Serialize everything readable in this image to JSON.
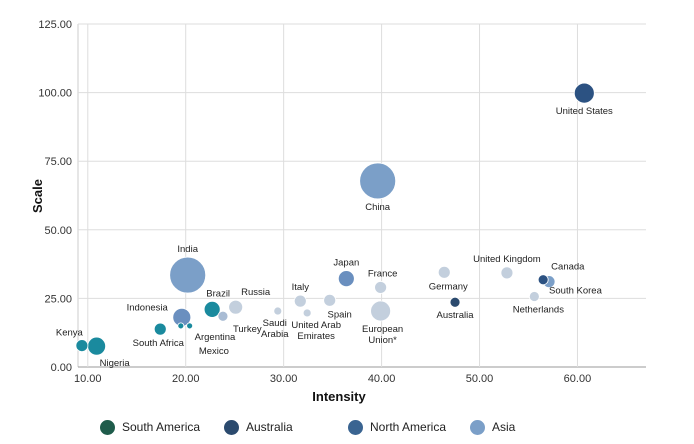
{
  "chart_data": {
    "type": "scatter",
    "xlabel": "Intensity",
    "ylabel": "Scale",
    "xlim": [
      9,
      67
    ],
    "ylim": [
      0,
      125
    ],
    "xticks": [
      "10.00",
      "20.00",
      "30.00",
      "40.00",
      "50.00",
      "60.00"
    ],
    "yticks": [
      "0.00",
      "25.00",
      "50.00",
      "75.00",
      "100.00",
      "125.00"
    ],
    "grid": true,
    "legend": [
      {
        "name": "South America",
        "color": "#1f5c4b"
      },
      {
        "name": "Australia",
        "color": "#2b4a6e"
      },
      {
        "name": "North America",
        "color": "#3a6491"
      },
      {
        "name": "Asia",
        "color": "#7b9fc8"
      }
    ],
    "points": [
      {
        "label": "United States",
        "x": 60.7,
        "y": 99.8,
        "size": 10,
        "color": "#2c5282"
      },
      {
        "label": "China",
        "x": 39.6,
        "y": 67.8,
        "size": 18,
        "color": "#7b9fc8"
      },
      {
        "label": "India",
        "x": 20.2,
        "y": 33.5,
        "size": 18,
        "color": "#7b9fc8"
      },
      {
        "label": "Japan",
        "x": 36.4,
        "y": 32.2,
        "size": 8,
        "color": "#6a8fbf"
      },
      {
        "label": "Canada",
        "x": 56.5,
        "y": 31.8,
        "size": 5,
        "color": "#2c5282"
      },
      {
        "label": "South Korea",
        "x": 57.1,
        "y": 31.1,
        "size": 6,
        "color": "#7b9fc8"
      },
      {
        "label": "United Kingdom",
        "x": 52.8,
        "y": 34.3,
        "size": 6,
        "color": "#c3cfdd"
      },
      {
        "label": "Germany",
        "x": 46.4,
        "y": 34.5,
        "size": 6,
        "color": "#c3cfdd"
      },
      {
        "label": "France",
        "x": 39.9,
        "y": 29.0,
        "size": 6,
        "color": "#c3cfdd"
      },
      {
        "label": "Netherlands",
        "x": 55.6,
        "y": 25.7,
        "size": 5,
        "color": "#c3cfdd"
      },
      {
        "label": "Australia",
        "x": 47.5,
        "y": 23.6,
        "size": 5,
        "color": "#2b4a6e"
      },
      {
        "label": "European Union*",
        "x": 39.9,
        "y": 20.4,
        "size": 10,
        "color": "#c3cfdd"
      },
      {
        "label": "Spain",
        "x": 34.7,
        "y": 24.3,
        "size": 6,
        "color": "#c3cfdd"
      },
      {
        "label": "Italy",
        "x": 31.7,
        "y": 24.0,
        "size": 6,
        "color": "#c3cfdd"
      },
      {
        "label": "United Arab Emirates",
        "x": 32.4,
        "y": 19.7,
        "size": 4,
        "color": "#c3cfdd"
      },
      {
        "label": "Saudi Arabia",
        "x": 29.4,
        "y": 20.4,
        "size": 4,
        "color": "#c3cfdd"
      },
      {
        "label": "Russia",
        "x": 25.1,
        "y": 21.8,
        "size": 7,
        "color": "#c3cfdd"
      },
      {
        "label": "Turkey",
        "x": 23.8,
        "y": 18.5,
        "size": 5,
        "color": "#a9bcd4"
      },
      {
        "label": "Brazil",
        "x": 22.7,
        "y": 21.0,
        "size": 8,
        "color": "#1a8a9e"
      },
      {
        "label": "Argentina",
        "x": 20.4,
        "y": 15.0,
        "size": 3,
        "color": "#1a8a9e"
      },
      {
        "label": "Mexico",
        "x": 19.5,
        "y": 15.0,
        "size": 3,
        "color": "#1a8a9e"
      },
      {
        "label": "Indonesia",
        "x": 19.6,
        "y": 18.1,
        "size": 9,
        "color": "#6a8fbf"
      },
      {
        "label": "South Africa",
        "x": 17.4,
        "y": 13.8,
        "size": 6,
        "color": "#1a8a9e"
      },
      {
        "label": "Kenya",
        "x": 9.4,
        "y": 7.8,
        "size": 6,
        "color": "#1a8a9e"
      },
      {
        "label": "Nigeria",
        "x": 10.9,
        "y": 7.6,
        "size": 9,
        "color": "#1a8a9e"
      }
    ]
  }
}
